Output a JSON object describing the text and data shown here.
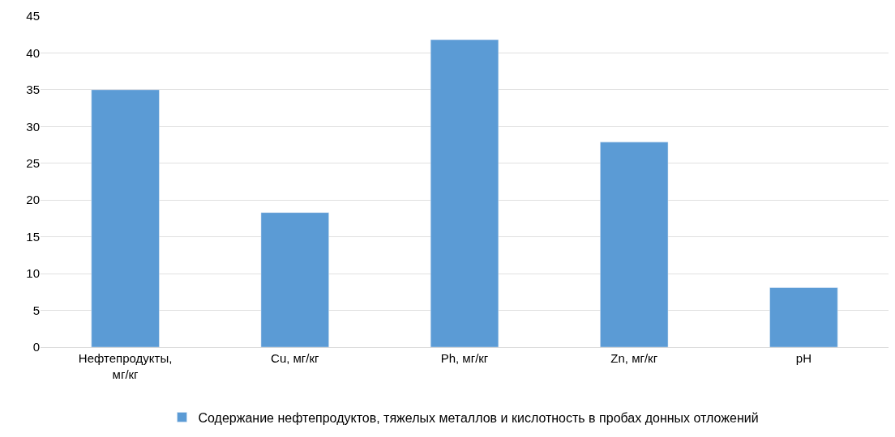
{
  "chart_data": {
    "type": "bar",
    "categories": [
      "Нефтепродукты,\nмг/кг",
      "Cu, мг/кг",
      "Ph, мг/кг",
      "Zn, мг/кг",
      "pH"
    ],
    "series": [
      {
        "name": "Содержание нефтепродуктов, тяжелых металлов и кислотность в пробах донных отложений",
        "color": "#5b9bd5",
        "values": [
          35.0,
          18.3,
          41.8,
          27.9,
          8.1
        ]
      }
    ],
    "ylim": [
      0,
      45
    ],
    "yticks": [
      0,
      5,
      10,
      15,
      20,
      25,
      30,
      35,
      40,
      45
    ],
    "grid": "y",
    "legend": "bottom"
  }
}
